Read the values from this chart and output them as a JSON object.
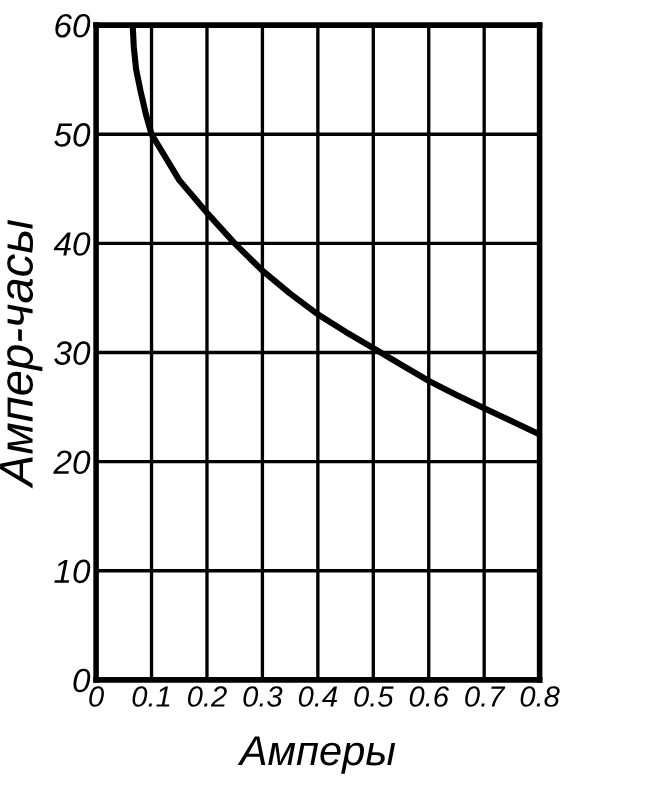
{
  "chart_data": {
    "type": "line",
    "xlabel": "Амперы",
    "ylabel": "Ампер-часы",
    "x": [
      0.066,
      0.068,
      0.072,
      0.08,
      0.09,
      0.1,
      0.15,
      0.2,
      0.25,
      0.3,
      0.35,
      0.4,
      0.45,
      0.5,
      0.55,
      0.6,
      0.65,
      0.7,
      0.75,
      0.8
    ],
    "series": [
      {
        "color": "#000000",
        "values": [
          60,
          58,
          56,
          54,
          51.8,
          50,
          45.8,
          42.8,
          40,
          37.5,
          35.4,
          33.5,
          31.9,
          30.4,
          28.9,
          27.4,
          26.1,
          24.9,
          23.7,
          22.5
        ]
      }
    ],
    "xlim": [
      0,
      0.8
    ],
    "ylim": [
      0,
      60
    ],
    "xticks": [
      0,
      0.1,
      0.2,
      0.3,
      0.4,
      0.5,
      0.6,
      0.7,
      0.8
    ],
    "yticks": [
      0,
      10,
      20,
      30,
      40,
      50,
      60
    ],
    "grid": true,
    "marker": "none",
    "line_style": "solid",
    "legend": false
  }
}
